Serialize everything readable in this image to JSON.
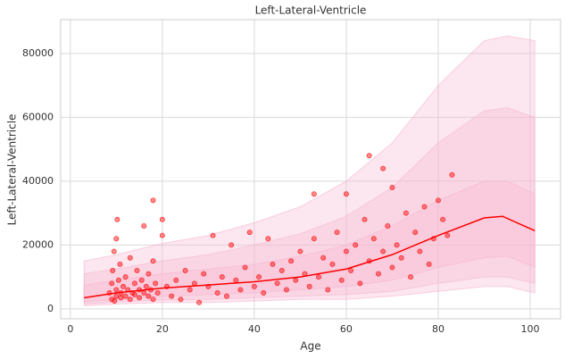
{
  "chart_data": {
    "type": "scatter",
    "title": "Left-Lateral-Ventricle",
    "x_label": "Age",
    "y_label": "Left-Lateral-Ventricle",
    "xlim": [
      -2.1,
      106.6
    ],
    "ylim": [
      -3100,
      90600
    ],
    "xticks": [
      0,
      20,
      40,
      60,
      80,
      100
    ],
    "yticks": [
      0,
      20000,
      40000,
      60000,
      80000
    ],
    "grid": true,
    "point_color": "#ff0000",
    "x": [
      8.5,
      9,
      9,
      9.2,
      9.5,
      9.6,
      10,
      10,
      10,
      10.2,
      10.5,
      10.8,
      11,
      11,
      11.5,
      12,
      12,
      12.5,
      13,
      13,
      13.5,
      14,
      14,
      14.5,
      15,
      15,
      15.5,
      16,
      16,
      16.5,
      17,
      17,
      17.5,
      18,
      18,
      18,
      18.5,
      19,
      20,
      20,
      21,
      22,
      23,
      24,
      25,
      26,
      27,
      28,
      29,
      30,
      31,
      32,
      33,
      34,
      35,
      36,
      37,
      38,
      39,
      40,
      41,
      42,
      43,
      44,
      45,
      46,
      47,
      48,
      49,
      50,
      51,
      52,
      53,
      53,
      54,
      55,
      56,
      57,
      58,
      59,
      60,
      60,
      61,
      62,
      63,
      64,
      65,
      65,
      66,
      67,
      68,
      68,
      69,
      70,
      70,
      71,
      72,
      73,
      74,
      75,
      76,
      77,
      78,
      79,
      80,
      81,
      82,
      83
    ],
    "y": [
      5000,
      3000,
      8000,
      12000,
      18000,
      2500,
      6000,
      4000,
      22000,
      28000,
      9000,
      14000,
      5000,
      3500,
      7000,
      4000,
      10000,
      6000,
      16000,
      3000,
      5000,
      8000,
      4500,
      12000,
      6000,
      3500,
      9000,
      5000,
      26000,
      7000,
      4000,
      11000,
      6000,
      34000,
      3000,
      15000,
      8000,
      5000,
      23000,
      28000,
      7000,
      4000,
      9000,
      3000,
      12000,
      6000,
      8000,
      2000,
      11000,
      7000,
      23000,
      5000,
      10000,
      4000,
      20000,
      9000,
      6000,
      13000,
      24000,
      7000,
      10000,
      5000,
      22000,
      14000,
      8000,
      12000,
      6000,
      15000,
      9000,
      18000,
      11000,
      7000,
      36000,
      22000,
      10000,
      16000,
      6000,
      14000,
      24000,
      9000,
      36000,
      18000,
      12000,
      20000,
      8000,
      28000,
      48000,
      15000,
      22000,
      11000,
      44000,
      18000,
      26000,
      13000,
      38000,
      20000,
      16000,
      30000,
      10000,
      24000,
      18000,
      32000,
      14000,
      22000,
      34000,
      28000,
      23000,
      42000
    ],
    "line": {
      "color": "#ff0000",
      "x": [
        3,
        10,
        20,
        30,
        40,
        50,
        60,
        70,
        80,
        90,
        94,
        101
      ],
      "y": [
        3500,
        5000,
        6500,
        7500,
        8500,
        10000,
        12500,
        17000,
        23000,
        28500,
        29000,
        24500
      ]
    },
    "band_color": "#f7b6d2",
    "band_x": [
      3,
      10,
      20,
      30,
      40,
      50,
      60,
      70,
      80,
      90,
      95,
      101
    ],
    "bands": [
      {
        "upper": [
          15000,
          17000,
          20500,
          23000,
          27000,
          32000,
          40000,
          52000,
          70000,
          84000,
          85500,
          84000
        ],
        "lower": [
          1000,
          1500,
          2000,
          2000,
          2500,
          3000,
          3000,
          4000,
          5500,
          7000,
          7000,
          5000
        ]
      },
      {
        "upper": [
          11000,
          12500,
          15000,
          17000,
          20000,
          23500,
          29000,
          38000,
          52000,
          62000,
          63000,
          60000
        ],
        "lower": [
          1500,
          2200,
          2800,
          3000,
          3500,
          4000,
          4500,
          5500,
          8000,
          10000,
          10000,
          8000
        ]
      },
      {
        "upper": [
          7500,
          9000,
          11000,
          12500,
          14000,
          16500,
          20000,
          26000,
          34000,
          40000,
          40000,
          36000
        ],
        "lower": [
          2200,
          3000,
          4000,
          4500,
          5000,
          6000,
          7000,
          9000,
          13000,
          16000,
          16500,
          13000
        ]
      }
    ]
  }
}
